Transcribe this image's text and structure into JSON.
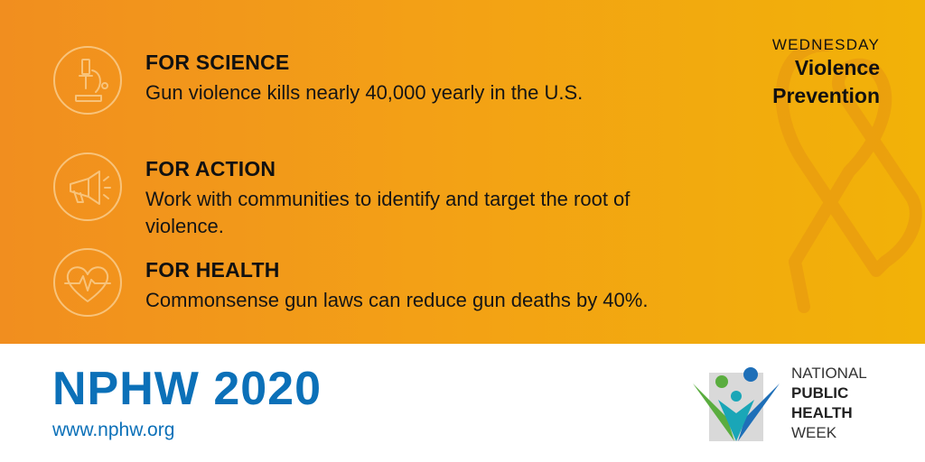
{
  "items": [
    {
      "heading": "FOR SCIENCE",
      "text": "Gun violence kills nearly 40,000 yearly in the U.S.",
      "icon": "microscope-icon"
    },
    {
      "heading": "FOR ACTION",
      "text": "Work with communities to identify and target the root of violence.",
      "icon": "megaphone-icon"
    },
    {
      "heading": "FOR HEALTH",
      "text": "Commonsense gun laws can reduce gun deaths by 40%.",
      "icon": "heartbeat-icon"
    }
  ],
  "day": {
    "label": "WEDNESDAY",
    "theme_line1": "Violence",
    "theme_line2": "Prevention"
  },
  "footer": {
    "title": "NPHW 2020",
    "url": "www.nphw.org"
  },
  "logo": {
    "line1": "NATIONAL",
    "line2": "PUBLIC",
    "line3": "HEALTH",
    "line4": "WEEK"
  },
  "colors": {
    "banner_start": "#f18e1f",
    "banner_end": "#f2b208",
    "brand_blue": "#0b70b8",
    "logo_green": "#5aad3f",
    "logo_teal": "#1aa6b7"
  }
}
